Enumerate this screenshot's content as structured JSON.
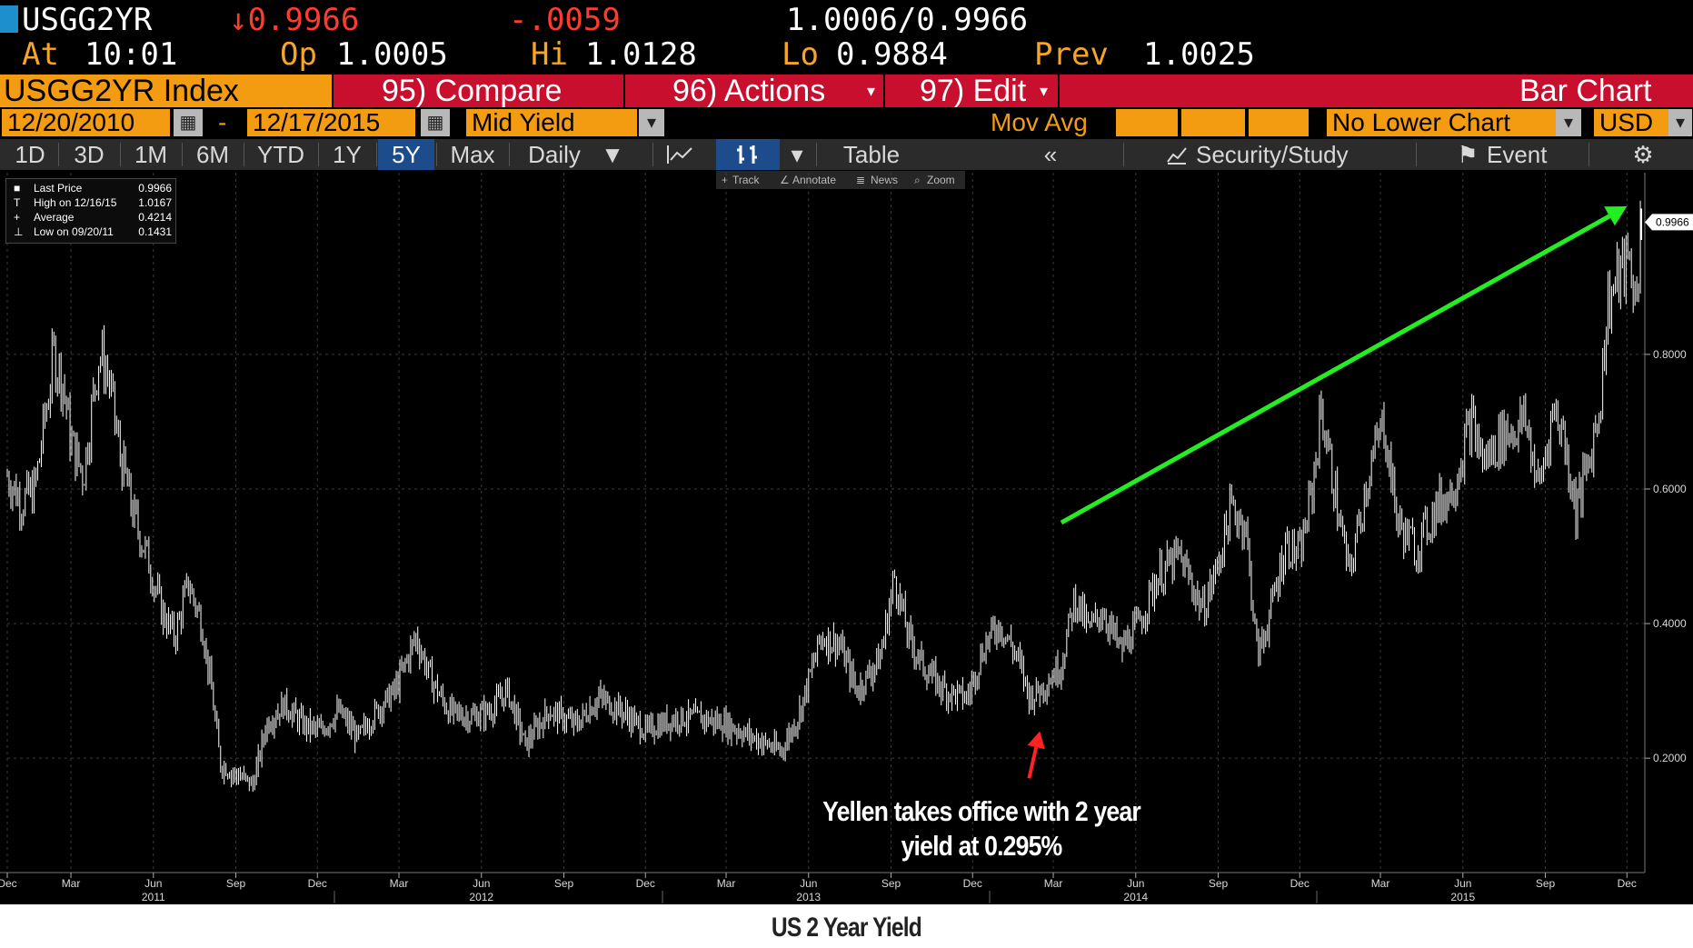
{
  "quote": {
    "ticker": "USGG2YR",
    "last": "↓0.9966",
    "change": "-.0059",
    "bid_ask": "1.0006/0.9966",
    "at_label": "At",
    "time": "10:01",
    "open_label": "Op",
    "open": "1.0005",
    "high_label": "Hi",
    "high": "1.0128",
    "low_label": "Lo",
    "low": "0.9884",
    "prev_label": "Prev",
    "prev": "1.0025"
  },
  "titlebar": {
    "security": "USGG2YR Index",
    "compare": "95) Compare",
    "actions": "96) Actions",
    "edit": "97) Edit",
    "chart_type": "Bar Chart"
  },
  "range": {
    "start": "12/20/2010",
    "dash": "-",
    "end": "12/17/2015",
    "field": "Mid Yield",
    "mov_avg": "Mov Avg",
    "lower_chart": "No Lower Chart",
    "currency": "USD"
  },
  "periods": [
    {
      "label": "1D"
    },
    {
      "label": "3D"
    },
    {
      "label": "1M"
    },
    {
      "label": "6M"
    },
    {
      "label": "YTD"
    },
    {
      "label": "1Y"
    },
    {
      "label": "5Y",
      "active": true
    },
    {
      "label": "Max"
    }
  ],
  "frequency": "Daily",
  "table_label": "Table",
  "security_study": "Security/Study",
  "event_label": "Event",
  "tools": {
    "track": "Track",
    "annotate": "Annotate",
    "news": "News",
    "zoom": "Zoom"
  },
  "legend": [
    {
      "glyph": "■",
      "label": "Last Price",
      "value": "0.9966"
    },
    {
      "glyph": "T",
      "label": "High on 12/16/15",
      "value": "1.0167"
    },
    {
      "glyph": "+",
      "label": "Average",
      "value": "0.4214"
    },
    {
      "glyph": "⊥",
      "label": "Low on 09/20/11",
      "value": "0.1431"
    }
  ],
  "annotation": {
    "line1": "Yellen takes office with 2 year",
    "line2": "yield at 0.295%"
  },
  "caption": "US 2 Year Yield",
  "colors": {
    "background": "#000000",
    "bars": "#ffffff",
    "trend_arrow": "#22ee22",
    "yellen_arrow": "#ff2222",
    "amber": "#f39c12",
    "titlebar_red": "#c8102e"
  },
  "chart_data": {
    "type": "bar",
    "title": "",
    "xlabel": "",
    "ylabel": "",
    "ylim": [
      0.03,
      1.07
    ],
    "yticks": [
      0.2,
      0.4,
      0.6,
      0.8
    ],
    "ytick_labels": [
      "0.2000",
      "0.4000",
      "0.6000",
      "0.8000"
    ],
    "last_price_label": "0.9966",
    "xticks": [
      {
        "label": "Dec",
        "date": "2010-12-20"
      },
      {
        "label": "Mar",
        "date": "2011-03-01"
      },
      {
        "label": "Jun",
        "date": "2011-06-01"
      },
      {
        "label": "Sep",
        "date": "2011-09-01"
      },
      {
        "label": "Dec",
        "date": "2011-12-01"
      },
      {
        "label": "Mar",
        "date": "2012-03-01"
      },
      {
        "label": "Jun",
        "date": "2012-06-01"
      },
      {
        "label": "Sep",
        "date": "2012-09-01"
      },
      {
        "label": "Dec",
        "date": "2012-12-01"
      },
      {
        "label": "Mar",
        "date": "2013-03-01"
      },
      {
        "label": "Jun",
        "date": "2013-06-01"
      },
      {
        "label": "Sep",
        "date": "2013-09-01"
      },
      {
        "label": "Dec",
        "date": "2013-12-01"
      },
      {
        "label": "Mar",
        "date": "2014-03-01"
      },
      {
        "label": "Jun",
        "date": "2014-06-01"
      },
      {
        "label": "Sep",
        "date": "2014-09-01"
      },
      {
        "label": "Dec",
        "date": "2014-12-01"
      },
      {
        "label": "Mar",
        "date": "2015-03-01"
      },
      {
        "label": "Jun",
        "date": "2015-06-01"
      },
      {
        "label": "Sep",
        "date": "2015-09-01"
      },
      {
        "label": "Dec",
        "date": "2015-12-01"
      }
    ],
    "year_labels": [
      {
        "label": "2011",
        "date": "2011-06-01"
      },
      {
        "label": "2012",
        "date": "2012-06-01"
      },
      {
        "label": "2013",
        "date": "2013-06-01"
      },
      {
        "label": "2014",
        "date": "2014-06-01"
      },
      {
        "label": "2015",
        "date": "2015-06-01"
      }
    ],
    "series": [
      {
        "points": [
          [
            "2010-12-20",
            0.62
          ],
          [
            "2011-01-05",
            0.58
          ],
          [
            "2011-01-20",
            0.6
          ],
          [
            "2011-02-10",
            0.8
          ],
          [
            "2011-02-20",
            0.76
          ],
          [
            "2011-03-01",
            0.67
          ],
          [
            "2011-03-15",
            0.62
          ],
          [
            "2011-04-01",
            0.8
          ],
          [
            "2011-04-10",
            0.78
          ],
          [
            "2011-04-25",
            0.65
          ],
          [
            "2011-05-10",
            0.56
          ],
          [
            "2011-05-25",
            0.5
          ],
          [
            "2011-06-10",
            0.42
          ],
          [
            "2011-06-25",
            0.38
          ],
          [
            "2011-07-10",
            0.46
          ],
          [
            "2011-07-25",
            0.4
          ],
          [
            "2011-08-05",
            0.3
          ],
          [
            "2011-08-15",
            0.19
          ],
          [
            "2011-08-25",
            0.18
          ],
          [
            "2011-09-10",
            0.17
          ],
          [
            "2011-09-20",
            0.16
          ],
          [
            "2011-10-05",
            0.25
          ],
          [
            "2011-10-25",
            0.28
          ],
          [
            "2011-11-15",
            0.25
          ],
          [
            "2011-12-05",
            0.24
          ],
          [
            "2011-12-25",
            0.27
          ],
          [
            "2012-01-15",
            0.23
          ],
          [
            "2012-02-05",
            0.27
          ],
          [
            "2012-02-25",
            0.3
          ],
          [
            "2012-03-20",
            0.38
          ],
          [
            "2012-04-05",
            0.32
          ],
          [
            "2012-04-25",
            0.27
          ],
          [
            "2012-05-20",
            0.26
          ],
          [
            "2012-06-10",
            0.27
          ],
          [
            "2012-06-30",
            0.3
          ],
          [
            "2012-07-20",
            0.22
          ],
          [
            "2012-08-15",
            0.27
          ],
          [
            "2012-09-15",
            0.25
          ],
          [
            "2012-10-10",
            0.29
          ],
          [
            "2012-11-05",
            0.27
          ],
          [
            "2012-12-01",
            0.24
          ],
          [
            "2013-01-05",
            0.26
          ],
          [
            "2013-02-01",
            0.26
          ],
          [
            "2013-03-01",
            0.25
          ],
          [
            "2013-04-01",
            0.23
          ],
          [
            "2013-05-01",
            0.21
          ],
          [
            "2013-05-20",
            0.26
          ],
          [
            "2013-06-15",
            0.38
          ],
          [
            "2013-07-05",
            0.37
          ],
          [
            "2013-07-25",
            0.3
          ],
          [
            "2013-08-20",
            0.35
          ],
          [
            "2013-09-05",
            0.47
          ],
          [
            "2013-09-20",
            0.38
          ],
          [
            "2013-10-10",
            0.33
          ],
          [
            "2013-11-01",
            0.3
          ],
          [
            "2013-11-25",
            0.29
          ],
          [
            "2013-12-15",
            0.37
          ],
          [
            "2013-12-31",
            0.4
          ],
          [
            "2014-01-20",
            0.35
          ],
          [
            "2014-02-03",
            0.29
          ],
          [
            "2014-02-20",
            0.31
          ],
          [
            "2014-03-10",
            0.34
          ],
          [
            "2014-03-25",
            0.44
          ],
          [
            "2014-04-10",
            0.39
          ],
          [
            "2014-04-25",
            0.42
          ],
          [
            "2014-05-15",
            0.36
          ],
          [
            "2014-06-05",
            0.4
          ],
          [
            "2014-06-25",
            0.47
          ],
          [
            "2014-07-20",
            0.5
          ],
          [
            "2014-08-15",
            0.42
          ],
          [
            "2014-08-30",
            0.48
          ],
          [
            "2014-09-15",
            0.57
          ],
          [
            "2014-10-01",
            0.55
          ],
          [
            "2014-10-15",
            0.35
          ],
          [
            "2014-10-30",
            0.42
          ],
          [
            "2014-11-15",
            0.52
          ],
          [
            "2014-12-01",
            0.5
          ],
          [
            "2014-12-15",
            0.6
          ],
          [
            "2014-12-25",
            0.72
          ],
          [
            "2015-01-10",
            0.59
          ],
          [
            "2015-01-25",
            0.47
          ],
          [
            "2015-02-15",
            0.62
          ],
          [
            "2015-03-05",
            0.7
          ],
          [
            "2015-03-20",
            0.55
          ],
          [
            "2015-04-10",
            0.51
          ],
          [
            "2015-05-01",
            0.57
          ],
          [
            "2015-05-20",
            0.6
          ],
          [
            "2015-06-10",
            0.7
          ],
          [
            "2015-06-25",
            0.64
          ],
          [
            "2015-07-15",
            0.68
          ],
          [
            "2015-08-10",
            0.7
          ],
          [
            "2015-08-25",
            0.6
          ],
          [
            "2015-09-10",
            0.72
          ],
          [
            "2015-09-20",
            0.69
          ],
          [
            "2015-10-05",
            0.57
          ],
          [
            "2015-10-20",
            0.64
          ],
          [
            "2015-11-01",
            0.73
          ],
          [
            "2015-11-10",
            0.88
          ],
          [
            "2015-11-25",
            0.92
          ],
          [
            "2015-12-05",
            0.94
          ],
          [
            "2015-12-10",
            0.88
          ],
          [
            "2015-12-17",
            0.9966
          ]
        ]
      }
    ],
    "annotations": {
      "trend_arrow": {
        "from": [
          "2014-03-10",
          0.55
        ],
        "to": [
          "2015-12-01",
          1.02
        ]
      },
      "yellen_arrow": {
        "from": [
          "2014-02-02",
          0.17
        ],
        "to": [
          "2014-02-14",
          0.24
        ]
      }
    }
  }
}
